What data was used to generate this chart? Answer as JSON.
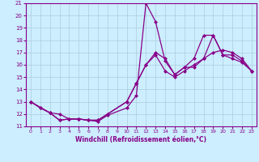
{
  "xlabel": "Windchill (Refroidissement éolien,°C)",
  "bg_color": "#cceeff",
  "grid_color": "#aaccdd",
  "line_color": "#880088",
  "xlim": [
    -0.5,
    23.5
  ],
  "ylim": [
    11,
    21
  ],
  "xticks": [
    0,
    1,
    2,
    3,
    4,
    5,
    6,
    7,
    8,
    9,
    10,
    11,
    12,
    13,
    14,
    15,
    16,
    17,
    18,
    19,
    20,
    21,
    22,
    23
  ],
  "yticks": [
    11,
    12,
    13,
    14,
    15,
    16,
    17,
    18,
    19,
    20,
    21
  ],
  "series1_x": [
    0,
    1,
    2,
    3,
    4,
    5,
    6,
    7,
    8,
    10,
    11,
    12,
    13,
    14,
    15,
    16,
    17,
    18,
    19,
    20,
    21,
    22,
    23
  ],
  "series1_y": [
    13.0,
    12.5,
    12.1,
    12.0,
    11.6,
    11.6,
    11.5,
    11.5,
    12.0,
    13.0,
    14.5,
    16.0,
    16.8,
    15.5,
    15.0,
    15.5,
    16.0,
    16.5,
    17.0,
    17.2,
    17.0,
    16.5,
    15.5
  ],
  "series2_x": [
    0,
    2,
    3,
    4,
    5,
    6,
    7,
    8,
    10,
    11,
    12,
    13,
    14,
    15,
    16,
    17,
    18,
    19,
    20,
    21,
    22,
    23
  ],
  "series2_y": [
    13.0,
    12.1,
    11.5,
    11.6,
    11.6,
    11.5,
    11.5,
    12.0,
    13.0,
    14.5,
    16.0,
    17.0,
    16.5,
    15.2,
    15.8,
    16.5,
    18.4,
    18.4,
    16.8,
    16.5,
    16.2,
    15.5
  ],
  "series3_x": [
    0,
    1,
    2,
    3,
    4,
    5,
    6,
    7,
    8,
    10,
    11,
    12,
    13,
    14,
    15,
    16,
    17,
    18,
    19,
    20,
    21,
    22,
    23
  ],
  "series3_y": [
    13.0,
    12.5,
    12.1,
    11.5,
    11.6,
    11.6,
    11.5,
    11.4,
    11.9,
    12.5,
    13.5,
    21.0,
    19.5,
    16.3,
    15.2,
    15.8,
    15.8,
    16.5,
    18.4,
    16.8,
    16.8,
    16.3,
    15.5
  ],
  "marker_size": 2.5,
  "line_width": 0.9
}
